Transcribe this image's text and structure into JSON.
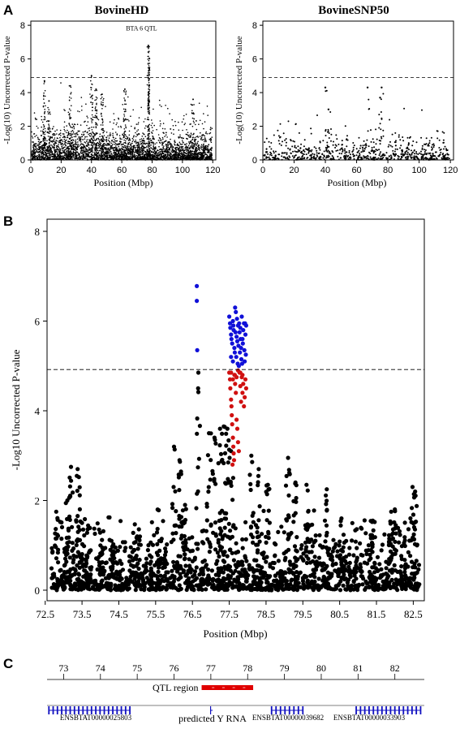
{
  "chart_data": [
    {
      "panel": "A",
      "title": "BovineHD",
      "type": "scatter",
      "xlabel": "Position (Mbp)",
      "ylabel": "-Log(10) Uncorrected P-value",
      "xticks": [
        0,
        20,
        40,
        60,
        80,
        100,
        120
      ],
      "yticks": [
        0,
        2,
        4,
        6,
        8
      ],
      "xlim": [
        0,
        122
      ],
      "ylim": [
        0,
        8
      ],
      "threshold": 4.9,
      "annotation": {
        "text": "BTA 6 QTL",
        "x": 73,
        "y": 7.7
      },
      "peaks": [
        {
          "x": 9,
          "y": 4.7
        },
        {
          "x": 12,
          "y": 3.5
        },
        {
          "x": 26,
          "y": 4.4
        },
        {
          "x": 40,
          "y": 5.0
        },
        {
          "x": 43,
          "y": 4.2
        },
        {
          "x": 47,
          "y": 3.9
        },
        {
          "x": 62,
          "y": 4.2
        },
        {
          "x": 77.5,
          "y": 6.8
        },
        {
          "x": 107,
          "y": 3.6
        }
      ],
      "point_color": "#000000",
      "n_points_approx": 3500
    },
    {
      "panel": "A",
      "title": "BovineSNP50",
      "type": "scatter",
      "xlabel": "Position (Mbp)",
      "ylabel": "-Log(10) Uncorrected P-value",
      "xticks": [
        0,
        20,
        40,
        60,
        80,
        100,
        120
      ],
      "yticks": [
        0,
        2,
        4,
        6,
        8
      ],
      "xlim": [
        0,
        122
      ],
      "ylim": [
        0,
        8
      ],
      "threshold": 4.9,
      "peaks": [
        {
          "x": 40,
          "y": 4.3
        },
        {
          "x": 42,
          "y": 3.0
        },
        {
          "x": 67,
          "y": 4.3
        },
        {
          "x": 76,
          "y": 4.3
        },
        {
          "x": 75,
          "y": 3.7
        }
      ],
      "point_color": "#000000",
      "n_points_approx": 700
    },
    {
      "panel": "B",
      "title": "",
      "type": "scatter",
      "xlabel": "Position (Mbp)",
      "ylabel": "-Log10 Uncorrected P-value",
      "xticks": [
        72.5,
        73.5,
        74.5,
        75.5,
        76.5,
        77.5,
        78.5,
        79.5,
        80.5,
        81.5,
        82.5
      ],
      "yticks": [
        0,
        2,
        4,
        6,
        8
      ],
      "xlim": [
        72.55,
        82.8
      ],
      "ylim": [
        0,
        8
      ],
      "threshold": 4.92,
      "series": [
        {
          "name": "",
          "color": "#1010d8",
          "points": [
            [
              76.62,
              6.78
            ],
            [
              76.62,
              6.45
            ],
            [
              76.63,
              5.35
            ],
            [
              77.5,
              6.1
            ],
            [
              77.52,
              5.95
            ],
            [
              77.53,
              5.85
            ],
            [
              77.55,
              5.7
            ],
            [
              77.56,
              5.6
            ],
            [
              77.58,
              5.5
            ],
            [
              77.6,
              6.0
            ],
            [
              77.61,
              5.9
            ],
            [
              77.62,
              5.8
            ],
            [
              77.64,
              5.4
            ],
            [
              77.65,
              5.3
            ],
            [
              77.66,
              6.3
            ],
            [
              77.67,
              5.75
            ],
            [
              77.69,
              5.2
            ],
            [
              77.7,
              5.65
            ],
            [
              77.71,
              6.05
            ],
            [
              77.72,
              5.55
            ],
            [
              77.74,
              5.9
            ],
            [
              77.75,
              5.45
            ],
            [
              77.76,
              5.0
            ],
            [
              77.77,
              5.95
            ],
            [
              77.79,
              5.3
            ],
            [
              77.8,
              5.85
            ],
            [
              77.81,
              5.6
            ],
            [
              77.83,
              5.15
            ],
            [
              77.84,
              6.1
            ],
            [
              77.85,
              5.05
            ],
            [
              77.87,
              5.5
            ],
            [
              77.88,
              5.8
            ],
            [
              77.9,
              5.95
            ],
            [
              77.91,
              5.35
            ],
            [
              77.92,
              5.1
            ],
            [
              77.94,
              5.7
            ],
            [
              77.95,
              5.25
            ],
            [
              77.96,
              5.9
            ],
            [
              77.55,
              5.2
            ],
            [
              77.6,
              5.1
            ],
            [
              77.68,
              6.2
            ],
            [
              77.73,
              5.05
            ],
            [
              77.78,
              5.75
            ],
            [
              77.82,
              5.4
            ],
            [
              77.86,
              5.6
            ],
            [
              77.93,
              5.95
            ]
          ]
        },
        {
          "name": "",
          "color": "#d01010",
          "points": [
            [
              77.5,
              4.85
            ],
            [
              77.52,
              4.7
            ],
            [
              77.53,
              4.5
            ],
            [
              77.55,
              4.25
            ],
            [
              77.56,
              4.1
            ],
            [
              77.57,
              3.9
            ],
            [
              77.58,
              3.7
            ],
            [
              77.6,
              3.4
            ],
            [
              77.61,
              3.2
            ],
            [
              77.62,
              3.05
            ],
            [
              77.63,
              2.9
            ],
            [
              77.65,
              4.8
            ],
            [
              77.66,
              4.6
            ],
            [
              77.68,
              4.4
            ],
            [
              77.7,
              3.8
            ],
            [
              77.72,
              3.6
            ],
            [
              77.74,
              3.3
            ],
            [
              77.76,
              3.1
            ],
            [
              77.78,
              4.85
            ],
            [
              77.8,
              4.55
            ],
            [
              77.82,
              4.2
            ],
            [
              77.84,
              4.75
            ],
            [
              77.86,
              4.4
            ],
            [
              77.88,
              4.6
            ],
            [
              77.9,
              4.1
            ],
            [
              77.92,
              4.3
            ],
            [
              77.94,
              4.7
            ],
            [
              77.96,
              4.5
            ],
            [
              77.55,
              4.85
            ],
            [
              77.6,
              4.7
            ],
            [
              77.64,
              4.8
            ],
            [
              77.7,
              4.75
            ],
            [
              77.74,
              4.9
            ],
            [
              77.8,
              4.85
            ],
            [
              77.86,
              4.8
            ],
            [
              77.59,
              2.8
            ]
          ]
        },
        {
          "name": "",
          "color": "#000000",
          "note": "remaining SNPs (n≈1600) follow a background distribution mostly between 0 and 1.5 with local peaks",
          "peaks": [
            [
              72.8,
              1.75
            ],
            [
              73.1,
              2.0
            ],
            [
              73.2,
              2.75
            ],
            [
              73.38,
              2.7
            ],
            [
              73.5,
              1.5
            ],
            [
              74.0,
              1.0
            ],
            [
              74.3,
              1.1
            ],
            [
              75.0,
              1.2
            ],
            [
              75.6,
              1.1
            ],
            [
              76.0,
              3.2
            ],
            [
              76.15,
              2.9
            ],
            [
              76.3,
              1.9
            ],
            [
              76.66,
              4.85
            ],
            [
              76.95,
              3.5
            ],
            [
              77.1,
              3.4
            ],
            [
              77.25,
              3.6
            ],
            [
              77.35,
              3.65
            ],
            [
              77.45,
              3.6
            ],
            [
              77.55,
              3.1
            ],
            [
              78.1,
              3.0
            ],
            [
              78.3,
              2.7
            ],
            [
              78.55,
              2.35
            ],
            [
              79.1,
              2.95
            ],
            [
              79.3,
              2.4
            ],
            [
              79.6,
              2.35
            ],
            [
              80.15,
              2.25
            ],
            [
              80.55,
              1.6
            ],
            [
              81.4,
              1.55
            ],
            [
              81.9,
              1.75
            ],
            [
              82.0,
              1.8
            ],
            [
              82.48,
              2.3
            ],
            [
              82.55,
              2.2
            ]
          ]
        }
      ]
    }
  ],
  "panel_labels": [
    "A",
    "B",
    "C"
  ],
  "track": {
    "panel": "C",
    "axis_ticks": [
      "73",
      "74",
      "75",
      "76",
      "77",
      "78",
      "79",
      "80",
      "81",
      "82"
    ],
    "axis_values": [
      73,
      74,
      75,
      76,
      77,
      78,
      79,
      80,
      81,
      82
    ],
    "qtl_region": {
      "label": "QTL region",
      "start": 76.75,
      "end": 78.15,
      "color": "#e00000"
    },
    "genes": [
      {
        "label": "ENSBTAT00000025803",
        "start": 72.6,
        "end": 74.8
      },
      {
        "label": "predicted Y RNA",
        "start": 77.0,
        "end": 77.05
      },
      {
        "label": "ENSBTAT00000039682",
        "start": 78.65,
        "end": 79.5
      },
      {
        "label": "ENSBTAT00000033903",
        "start": 80.95,
        "end": 82.7
      }
    ],
    "gene_color": "#1010c0",
    "xlim": [
      72.55,
      82.8
    ]
  }
}
